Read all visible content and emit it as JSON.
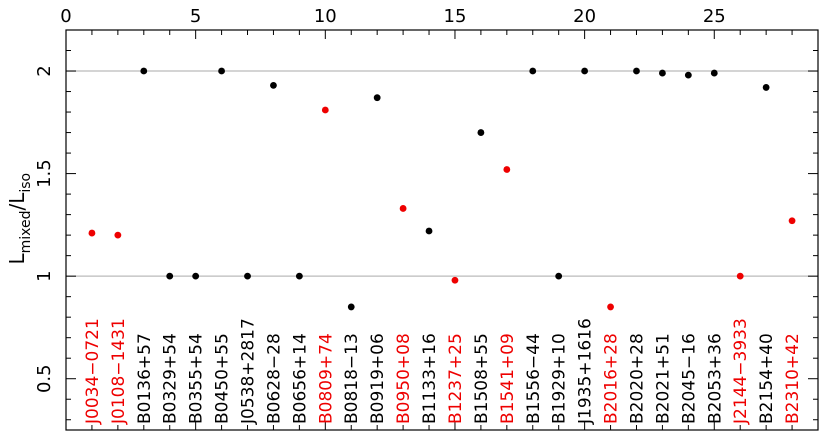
{
  "chart_data": {
    "type": "scatter",
    "ylabel": {
      "main": "L",
      "sub1": "mixed",
      "sep": "/L",
      "sub2": "iso"
    },
    "xlim": [
      0,
      29
    ],
    "ylim": [
      0.25,
      2.2
    ],
    "xticks_major": [
      0,
      5,
      10,
      15,
      20,
      25
    ],
    "xtick_labels": [
      "0",
      "5",
      "10",
      "15",
      "20",
      "25"
    ],
    "yticks_major": [
      0.5,
      1,
      1.5,
      2
    ],
    "ytick_labels": [
      "0.5",
      "1",
      "1.5",
      "2"
    ],
    "reference_lines": [
      1,
      2
    ],
    "colors": {
      "black": "#000000",
      "red": "#ee0000",
      "reference": "#bbbbbb"
    },
    "points": [
      {
        "x": 1,
        "y": 1.21,
        "label": "J0034−0721",
        "color": "red"
      },
      {
        "x": 2,
        "y": 1.2,
        "label": "J0108−1431",
        "color": "red"
      },
      {
        "x": 3,
        "y": 2.0,
        "label": "B0136+57",
        "color": "black"
      },
      {
        "x": 4,
        "y": 1.0,
        "label": "B0329+54",
        "color": "black"
      },
      {
        "x": 5,
        "y": 1.0,
        "label": "B0355+54",
        "color": "black"
      },
      {
        "x": 6,
        "y": 2.0,
        "label": "B0450+55",
        "color": "black"
      },
      {
        "x": 7,
        "y": 1.0,
        "label": "J0538+2817",
        "color": "black"
      },
      {
        "x": 8,
        "y": 1.93,
        "label": "B0628−28",
        "color": "black"
      },
      {
        "x": 9,
        "y": 1.0,
        "label": "B0656+14",
        "color": "black"
      },
      {
        "x": 10,
        "y": 1.81,
        "label": "B0809+74",
        "color": "red"
      },
      {
        "x": 11,
        "y": 0.85,
        "label": "B0818−13",
        "color": "black"
      },
      {
        "x": 12,
        "y": 1.87,
        "label": "B0919+06",
        "color": "black"
      },
      {
        "x": 13,
        "y": 1.33,
        "label": "B0950+08",
        "color": "red"
      },
      {
        "x": 14,
        "y": 1.22,
        "label": "B1133+16",
        "color": "black"
      },
      {
        "x": 15,
        "y": 0.98,
        "label": "B1237+25",
        "color": "red"
      },
      {
        "x": 16,
        "y": 1.7,
        "label": "B1508+55",
        "color": "black"
      },
      {
        "x": 17,
        "y": 1.52,
        "label": "B1541+09",
        "color": "red"
      },
      {
        "x": 18,
        "y": 2.0,
        "label": "B1556−44",
        "color": "black"
      },
      {
        "x": 19,
        "y": 1.0,
        "label": "B1929+10",
        "color": "black"
      },
      {
        "x": 20,
        "y": 2.0,
        "label": "J1935+1616",
        "color": "black"
      },
      {
        "x": 21,
        "y": 0.85,
        "label": "B2016+28",
        "color": "red"
      },
      {
        "x": 22,
        "y": 2.0,
        "label": "B2020+28",
        "color": "black"
      },
      {
        "x": 23,
        "y": 1.99,
        "label": "B2021+51",
        "color": "black"
      },
      {
        "x": 24,
        "y": 1.98,
        "label": "B2045−16",
        "color": "black"
      },
      {
        "x": 25,
        "y": 1.99,
        "label": "B2053+36",
        "color": "black"
      },
      {
        "x": 26,
        "y": 1.0,
        "label": "J2144−3933",
        "color": "red"
      },
      {
        "x": 27,
        "y": 1.92,
        "label": "B2154+40",
        "color": "black"
      },
      {
        "x": 28,
        "y": 1.27,
        "label": "B2310+42",
        "color": "red"
      }
    ]
  }
}
